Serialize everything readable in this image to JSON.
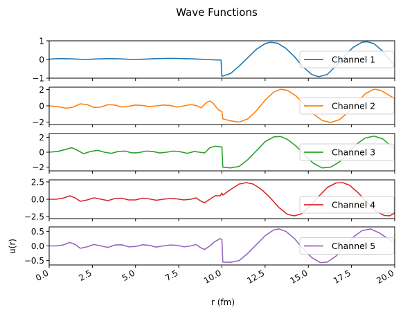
{
  "chart_data": {
    "type": "line",
    "title": "Wave Functions",
    "xlabel": "r (fm)",
    "ylabel": "u(r)",
    "xlim": [
      0,
      20
    ],
    "x_ticks": [
      0.0,
      2.5,
      5.0,
      7.5,
      10.0,
      12.5,
      15.0,
      17.5,
      20.0
    ],
    "x_tick_labels": [
      "0.0",
      "2.5",
      "5.0",
      "7.5",
      "10.0",
      "12.5",
      "15.0",
      "17.5",
      "20.0"
    ],
    "legend_position": "right",
    "panels": [
      {
        "name": "Channel 1",
        "color": "#1f77b4",
        "ylim": [
          -1,
          1
        ],
        "y_ticks": [
          -1,
          0,
          1
        ],
        "y_tick_labels": [
          "−1",
          "0",
          "1"
        ],
        "points": [
          [
            0,
            0.02
          ],
          [
            0.7,
            0.05
          ],
          [
            1.4,
            0.03
          ],
          [
            2.1,
            0.0
          ],
          [
            2.8,
            0.03
          ],
          [
            3.5,
            0.05
          ],
          [
            4.2,
            0.03
          ],
          [
            4.9,
            0.0
          ],
          [
            5.6,
            0.02
          ],
          [
            6.3,
            0.05
          ],
          [
            7.0,
            0.06
          ],
          [
            7.7,
            0.05
          ],
          [
            8.4,
            0.03
          ],
          [
            9.1,
            0.0
          ],
          [
            9.6,
            -0.02
          ],
          [
            9.95,
            -0.03
          ],
          [
            10.0,
            -0.9
          ],
          [
            10.5,
            -0.75
          ],
          [
            11.0,
            -0.35
          ],
          [
            11.5,
            0.1
          ],
          [
            12.0,
            0.55
          ],
          [
            12.5,
            0.85
          ],
          [
            12.8,
            0.92
          ],
          [
            13.2,
            0.88
          ],
          [
            13.7,
            0.6
          ],
          [
            14.2,
            0.15
          ],
          [
            14.7,
            -0.4
          ],
          [
            15.2,
            -0.8
          ],
          [
            15.6,
            -0.92
          ],
          [
            16.1,
            -0.8
          ],
          [
            16.6,
            -0.35
          ],
          [
            17.1,
            0.2
          ],
          [
            17.6,
            0.65
          ],
          [
            18.1,
            0.92
          ],
          [
            18.4,
            0.95
          ],
          [
            18.8,
            0.85
          ],
          [
            19.3,
            0.45
          ],
          [
            19.7,
            0.0
          ],
          [
            20.0,
            -0.38
          ]
        ]
      },
      {
        "name": "Channel 2",
        "color": "#ff7f0e",
        "ylim": [
          -2.3,
          2.3
        ],
        "y_ticks": [
          -2,
          0,
          2
        ],
        "y_tick_labels": [
          "−2",
          "0",
          "2"
        ],
        "points": [
          [
            0,
            0.0
          ],
          [
            0.5,
            -0.1
          ],
          [
            1.0,
            -0.3
          ],
          [
            1.4,
            -0.15
          ],
          [
            1.8,
            0.25
          ],
          [
            2.2,
            0.15
          ],
          [
            2.6,
            -0.2
          ],
          [
            3.0,
            -0.15
          ],
          [
            3.4,
            0.15
          ],
          [
            3.8,
            0.1
          ],
          [
            4.2,
            -0.15
          ],
          [
            4.6,
            -0.05
          ],
          [
            5.0,
            0.1
          ],
          [
            5.4,
            0.05
          ],
          [
            5.8,
            -0.1
          ],
          [
            6.2,
            0.0
          ],
          [
            6.6,
            0.1
          ],
          [
            7.0,
            0.05
          ],
          [
            7.4,
            -0.15
          ],
          [
            7.8,
            0.0
          ],
          [
            8.2,
            0.15
          ],
          [
            8.5,
            0.05
          ],
          [
            8.8,
            -0.25
          ],
          [
            9.1,
            0.4
          ],
          [
            9.3,
            0.6
          ],
          [
            9.5,
            0.3
          ],
          [
            9.8,
            -0.5
          ],
          [
            10.0,
            -0.7
          ],
          [
            10.05,
            -1.6
          ],
          [
            10.5,
            -1.85
          ],
          [
            11.0,
            -2.0
          ],
          [
            11.5,
            -1.6
          ],
          [
            12.0,
            -0.6
          ],
          [
            12.5,
            0.7
          ],
          [
            13.0,
            1.7
          ],
          [
            13.4,
            2.05
          ],
          [
            13.8,
            1.9
          ],
          [
            14.3,
            1.2
          ],
          [
            14.8,
            0.1
          ],
          [
            15.3,
            -1.0
          ],
          [
            15.8,
            -1.8
          ],
          [
            16.3,
            -2.05
          ],
          [
            16.8,
            -1.7
          ],
          [
            17.3,
            -0.8
          ],
          [
            17.8,
            0.4
          ],
          [
            18.3,
            1.5
          ],
          [
            18.8,
            2.05
          ],
          [
            19.2,
            1.9
          ],
          [
            19.6,
            1.4
          ],
          [
            20.0,
            0.9
          ]
        ]
      },
      {
        "name": "Channel 3",
        "color": "#2ca02c",
        "ylim": [
          -2.5,
          2.5
        ],
        "y_ticks": [
          -2,
          0,
          2
        ],
        "y_tick_labels": [
          "−2",
          "0",
          "2"
        ],
        "points": [
          [
            0,
            0.0
          ],
          [
            0.5,
            0.1
          ],
          [
            1.0,
            0.4
          ],
          [
            1.3,
            0.6
          ],
          [
            1.6,
            0.3
          ],
          [
            2.0,
            -0.2
          ],
          [
            2.4,
            0.1
          ],
          [
            2.8,
            0.25
          ],
          [
            3.2,
            0.0
          ],
          [
            3.6,
            -0.15
          ],
          [
            4.0,
            0.1
          ],
          [
            4.4,
            0.15
          ],
          [
            4.8,
            -0.1
          ],
          [
            5.2,
            -0.05
          ],
          [
            5.6,
            0.15
          ],
          [
            6.0,
            0.1
          ],
          [
            6.4,
            -0.1
          ],
          [
            6.8,
            0.0
          ],
          [
            7.2,
            0.15
          ],
          [
            7.6,
            0.05
          ],
          [
            8.0,
            -0.15
          ],
          [
            8.4,
            0.1
          ],
          [
            8.7,
            0.0
          ],
          [
            9.0,
            -0.1
          ],
          [
            9.3,
            0.6
          ],
          [
            9.6,
            0.8
          ],
          [
            10.0,
            0.7
          ],
          [
            10.05,
            -2.0
          ],
          [
            10.5,
            -2.1
          ],
          [
            11.0,
            -1.9
          ],
          [
            11.5,
            -1.0
          ],
          [
            12.0,
            0.2
          ],
          [
            12.5,
            1.4
          ],
          [
            13.0,
            2.05
          ],
          [
            13.4,
            2.1
          ],
          [
            13.8,
            1.7
          ],
          [
            14.3,
            0.8
          ],
          [
            14.8,
            -0.4
          ],
          [
            15.3,
            -1.5
          ],
          [
            15.8,
            -2.1
          ],
          [
            16.3,
            -2.0
          ],
          [
            16.8,
            -1.3
          ],
          [
            17.3,
            -0.1
          ],
          [
            17.8,
            1.1
          ],
          [
            18.3,
            1.9
          ],
          [
            18.8,
            2.15
          ],
          [
            19.3,
            1.8
          ],
          [
            19.7,
            1.0
          ],
          [
            20.0,
            0.4
          ]
        ]
      },
      {
        "name": "Channel 4",
        "color": "#d62728",
        "ylim": [
          -2.8,
          2.8
        ],
        "y_ticks": [
          -2.5,
          0.0,
          2.5
        ],
        "y_tick_labels": [
          "−2.5",
          "0.0",
          "2.5"
        ],
        "points": [
          [
            0,
            0.0
          ],
          [
            0.4,
            0.0
          ],
          [
            0.8,
            0.15
          ],
          [
            1.2,
            0.5
          ],
          [
            1.5,
            0.2
          ],
          [
            1.8,
            -0.3
          ],
          [
            2.2,
            -0.1
          ],
          [
            2.6,
            0.2
          ],
          [
            3.0,
            0.0
          ],
          [
            3.4,
            -0.2
          ],
          [
            3.8,
            0.1
          ],
          [
            4.2,
            0.15
          ],
          [
            4.6,
            -0.1
          ],
          [
            5.0,
            -0.1
          ],
          [
            5.4,
            0.15
          ],
          [
            5.8,
            0.05
          ],
          [
            6.2,
            -0.15
          ],
          [
            6.6,
            0.0
          ],
          [
            7.0,
            0.1
          ],
          [
            7.4,
            0.05
          ],
          [
            7.8,
            -0.1
          ],
          [
            8.2,
            0.0
          ],
          [
            8.5,
            0.2
          ],
          [
            8.8,
            -0.3
          ],
          [
            9.0,
            -0.5
          ],
          [
            9.3,
            0.0
          ],
          [
            9.6,
            0.5
          ],
          [
            9.9,
            0.5
          ],
          [
            10.0,
            0.9
          ],
          [
            10.05,
            0.6
          ],
          [
            10.5,
            1.4
          ],
          [
            11.0,
            2.2
          ],
          [
            11.4,
            2.4
          ],
          [
            11.8,
            2.2
          ],
          [
            12.3,
            1.4
          ],
          [
            12.8,
            0.2
          ],
          [
            13.3,
            -1.2
          ],
          [
            13.8,
            -2.2
          ],
          [
            14.2,
            -2.4
          ],
          [
            14.6,
            -2.1
          ],
          [
            15.1,
            -1.0
          ],
          [
            15.6,
            0.4
          ],
          [
            16.1,
            1.7
          ],
          [
            16.6,
            2.35
          ],
          [
            17.0,
            2.4
          ],
          [
            17.4,
            2.0
          ],
          [
            17.9,
            0.9
          ],
          [
            18.4,
            -0.5
          ],
          [
            18.9,
            -1.7
          ],
          [
            19.4,
            -2.35
          ],
          [
            19.7,
            -2.4
          ],
          [
            20.0,
            -2.0
          ]
        ]
      },
      {
        "name": "Channel 5",
        "color": "#9467bd",
        "ylim": [
          -0.65,
          0.65
        ],
        "y_ticks": [
          -0.5,
          0.0,
          0.5
        ],
        "y_tick_labels": [
          "−0.5",
          "0.0",
          "0.5"
        ],
        "points": [
          [
            0,
            0.0
          ],
          [
            0.4,
            0.0
          ],
          [
            0.8,
            0.03
          ],
          [
            1.2,
            0.12
          ],
          [
            1.5,
            0.05
          ],
          [
            1.8,
            -0.08
          ],
          [
            2.2,
            -0.03
          ],
          [
            2.6,
            0.05
          ],
          [
            3.0,
            0.0
          ],
          [
            3.4,
            -0.05
          ],
          [
            3.8,
            0.03
          ],
          [
            4.2,
            0.04
          ],
          [
            4.6,
            -0.03
          ],
          [
            5.0,
            -0.02
          ],
          [
            5.4,
            0.04
          ],
          [
            5.8,
            0.02
          ],
          [
            6.2,
            -0.04
          ],
          [
            6.6,
            0.0
          ],
          [
            7.0,
            0.03
          ],
          [
            7.4,
            0.02
          ],
          [
            7.8,
            -0.03
          ],
          [
            8.2,
            0.0
          ],
          [
            8.5,
            0.05
          ],
          [
            8.8,
            -0.07
          ],
          [
            9.0,
            -0.12
          ],
          [
            9.3,
            0.0
          ],
          [
            9.6,
            0.15
          ],
          [
            9.9,
            0.25
          ],
          [
            10.0,
            0.22
          ],
          [
            10.05,
            -0.55
          ],
          [
            10.5,
            -0.56
          ],
          [
            11.0,
            -0.5
          ],
          [
            11.5,
            -0.25
          ],
          [
            12.0,
            0.05
          ],
          [
            12.5,
            0.35
          ],
          [
            13.0,
            0.55
          ],
          [
            13.3,
            0.58
          ],
          [
            13.7,
            0.5
          ],
          [
            14.2,
            0.25
          ],
          [
            14.7,
            -0.1
          ],
          [
            15.2,
            -0.4
          ],
          [
            15.7,
            -0.57
          ],
          [
            16.1,
            -0.55
          ],
          [
            16.6,
            -0.35
          ],
          [
            17.1,
            -0.02
          ],
          [
            17.6,
            0.3
          ],
          [
            18.1,
            0.52
          ],
          [
            18.6,
            0.58
          ],
          [
            19.1,
            0.45
          ],
          [
            19.6,
            0.25
          ],
          [
            20.0,
            0.1
          ]
        ]
      }
    ]
  }
}
